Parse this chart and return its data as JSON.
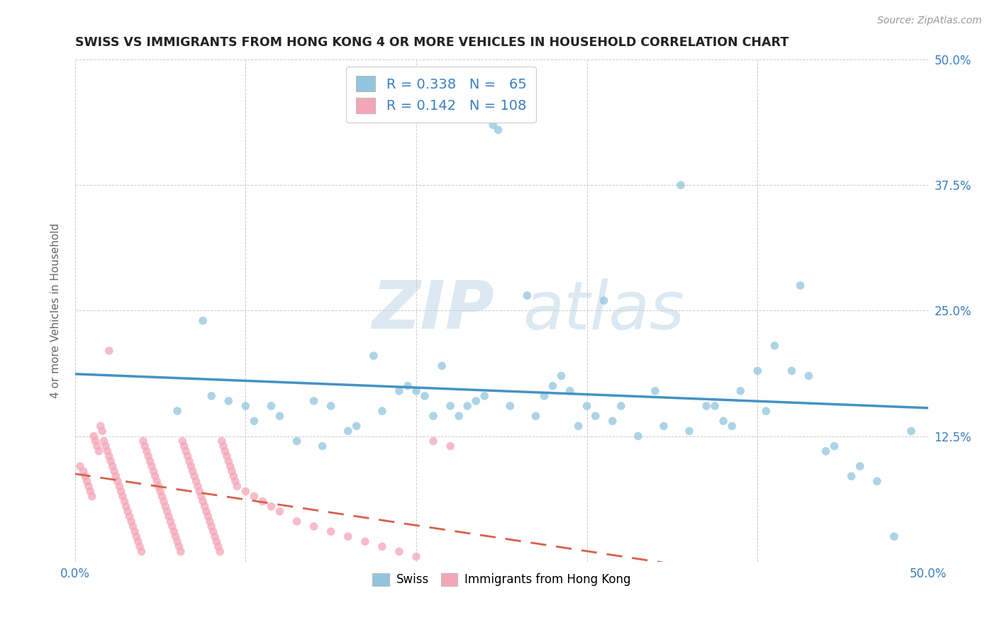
{
  "title": "SWISS VS IMMIGRANTS FROM HONG KONG 4 OR MORE VEHICLES IN HOUSEHOLD CORRELATION CHART",
  "source": "Source: ZipAtlas.com",
  "ylabel": "4 or more Vehicles in Household",
  "xlim": [
    0.0,
    0.5
  ],
  "ylim": [
    0.0,
    0.5
  ],
  "x_ticks": [
    0.0,
    0.1,
    0.2,
    0.3,
    0.4,
    0.5
  ],
  "y_ticks": [
    0.0,
    0.125,
    0.25,
    0.375,
    0.5
  ],
  "legend_swiss_R": "0.338",
  "legend_swiss_N": "65",
  "legend_hk_R": "0.142",
  "legend_hk_N": "108",
  "swiss_color": "#92c5de",
  "hk_color": "#f4a6b8",
  "swiss_line_color": "#4393c3",
  "hk_line_color": "#d6604d",
  "watermark_color": "#dce9f2",
  "swiss_x": [
    0.245,
    0.248,
    0.355,
    0.425,
    0.075,
    0.115,
    0.14,
    0.175,
    0.19,
    0.22,
    0.24,
    0.265,
    0.285,
    0.29,
    0.31,
    0.32,
    0.34,
    0.37,
    0.39,
    0.42,
    0.445,
    0.46,
    0.48,
    0.06,
    0.08,
    0.09,
    0.1,
    0.105,
    0.12,
    0.13,
    0.145,
    0.15,
    0.16,
    0.165,
    0.18,
    0.195,
    0.2,
    0.205,
    0.21,
    0.215,
    0.225,
    0.23,
    0.235,
    0.255,
    0.27,
    0.275,
    0.28,
    0.295,
    0.3,
    0.305,
    0.315,
    0.33,
    0.345,
    0.36,
    0.375,
    0.38,
    0.385,
    0.4,
    0.405,
    0.41,
    0.43,
    0.44,
    0.455,
    0.47,
    0.49
  ],
  "swiss_y": [
    0.435,
    0.43,
    0.375,
    0.275,
    0.24,
    0.155,
    0.16,
    0.205,
    0.17,
    0.155,
    0.165,
    0.265,
    0.185,
    0.17,
    0.26,
    0.155,
    0.17,
    0.155,
    0.17,
    0.19,
    0.115,
    0.095,
    0.025,
    0.15,
    0.165,
    0.16,
    0.155,
    0.14,
    0.145,
    0.12,
    0.115,
    0.155,
    0.13,
    0.135,
    0.15,
    0.175,
    0.17,
    0.165,
    0.145,
    0.195,
    0.145,
    0.155,
    0.16,
    0.155,
    0.145,
    0.165,
    0.175,
    0.135,
    0.155,
    0.145,
    0.14,
    0.125,
    0.135,
    0.13,
    0.155,
    0.14,
    0.135,
    0.19,
    0.15,
    0.215,
    0.185,
    0.11,
    0.085,
    0.08,
    0.13
  ],
  "hk_x": [
    0.003,
    0.005,
    0.006,
    0.007,
    0.008,
    0.009,
    0.01,
    0.011,
    0.012,
    0.013,
    0.014,
    0.015,
    0.016,
    0.017,
    0.018,
    0.019,
    0.02,
    0.021,
    0.022,
    0.023,
    0.024,
    0.025,
    0.026,
    0.027,
    0.028,
    0.029,
    0.03,
    0.031,
    0.032,
    0.033,
    0.034,
    0.035,
    0.036,
    0.037,
    0.038,
    0.039,
    0.04,
    0.041,
    0.042,
    0.043,
    0.044,
    0.045,
    0.046,
    0.047,
    0.048,
    0.049,
    0.05,
    0.051,
    0.052,
    0.053,
    0.054,
    0.055,
    0.056,
    0.057,
    0.058,
    0.059,
    0.06,
    0.061,
    0.062,
    0.063,
    0.064,
    0.065,
    0.066,
    0.067,
    0.068,
    0.069,
    0.07,
    0.071,
    0.072,
    0.073,
    0.074,
    0.075,
    0.076,
    0.077,
    0.078,
    0.079,
    0.08,
    0.081,
    0.082,
    0.083,
    0.084,
    0.085,
    0.086,
    0.087,
    0.088,
    0.089,
    0.09,
    0.091,
    0.092,
    0.093,
    0.094,
    0.095,
    0.1,
    0.105,
    0.11,
    0.115,
    0.12,
    0.13,
    0.14,
    0.15,
    0.16,
    0.17,
    0.18,
    0.19,
    0.2,
    0.21,
    0.22,
    0.02
  ],
  "hk_y": [
    0.095,
    0.09,
    0.085,
    0.08,
    0.075,
    0.07,
    0.065,
    0.125,
    0.12,
    0.115,
    0.11,
    0.135,
    0.13,
    0.12,
    0.115,
    0.11,
    0.105,
    0.1,
    0.095,
    0.09,
    0.085,
    0.08,
    0.075,
    0.07,
    0.065,
    0.06,
    0.055,
    0.05,
    0.045,
    0.04,
    0.035,
    0.03,
    0.025,
    0.02,
    0.015,
    0.01,
    0.12,
    0.115,
    0.11,
    0.105,
    0.1,
    0.095,
    0.09,
    0.085,
    0.08,
    0.075,
    0.07,
    0.065,
    0.06,
    0.055,
    0.05,
    0.045,
    0.04,
    0.035,
    0.03,
    0.025,
    0.02,
    0.015,
    0.01,
    0.12,
    0.115,
    0.11,
    0.105,
    0.1,
    0.095,
    0.09,
    0.085,
    0.08,
    0.075,
    0.07,
    0.065,
    0.06,
    0.055,
    0.05,
    0.045,
    0.04,
    0.035,
    0.03,
    0.025,
    0.02,
    0.015,
    0.01,
    0.12,
    0.115,
    0.11,
    0.105,
    0.1,
    0.095,
    0.09,
    0.085,
    0.08,
    0.075,
    0.07,
    0.065,
    0.06,
    0.055,
    0.05,
    0.04,
    0.035,
    0.03,
    0.025,
    0.02,
    0.015,
    0.01,
    0.005,
    0.12,
    0.115,
    0.21
  ]
}
